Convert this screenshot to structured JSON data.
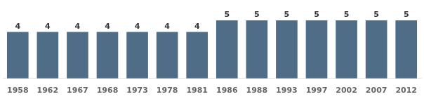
{
  "chart_data": {
    "type": "bar",
    "categories": [
      "1958",
      "1962",
      "1967",
      "1968",
      "1973",
      "1978",
      "1981",
      "1986",
      "1988",
      "1993",
      "1997",
      "2002",
      "2007",
      "2012"
    ],
    "values": [
      4,
      4,
      4,
      4,
      4,
      4,
      4,
      5,
      5,
      5,
      5,
      5,
      5,
      5
    ],
    "color": "#4f6d87",
    "ylim": [
      0,
      6.5
    ],
    "grid": false,
    "data_labels": true,
    "tick_labels": "x"
  }
}
